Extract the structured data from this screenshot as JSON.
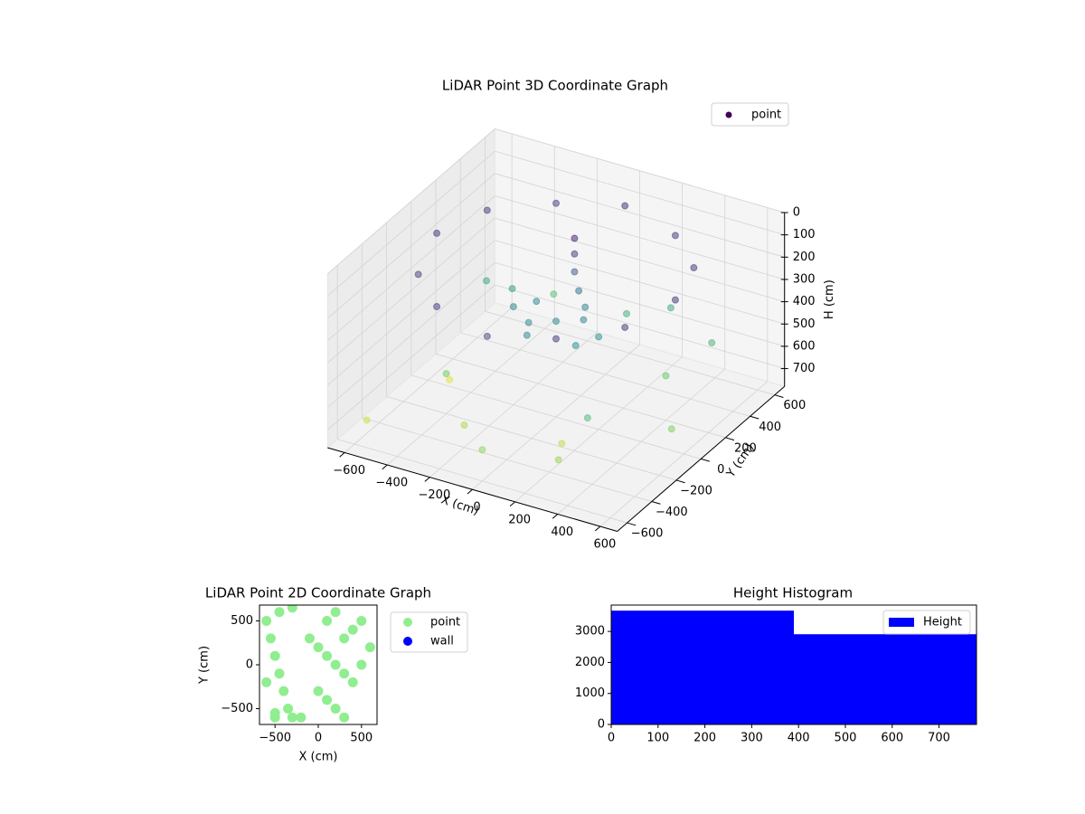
{
  "chart_data": [
    {
      "type": "scatter3d",
      "title": "LiDAR Point 3D Coordinate Graph",
      "xlabel": "X (cm)",
      "ylabel": "Y (cm)",
      "zlabel": "H (cm)",
      "xlim": [
        -680,
        680
      ],
      "ylim": [
        -680,
        680
      ],
      "zlim": [
        0,
        780
      ],
      "z_inverted": true,
      "xticks": [
        {
          "value": -600,
          "label": "−600"
        },
        {
          "value": -400,
          "label": "−400"
        },
        {
          "value": -200,
          "label": "−200"
        },
        0,
        200,
        400,
        600
      ],
      "yticks": [
        {
          "value": -600,
          "label": "−600"
        },
        {
          "value": -400,
          "label": "−400"
        },
        {
          "value": -200,
          "label": "−200"
        },
        0,
        200,
        400,
        600
      ],
      "zticks": [
        0,
        100,
        200,
        300,
        400,
        500,
        600,
        700
      ],
      "grid": true,
      "colormap": "viridis",
      "alpha": 0.5,
      "legend": "upper right",
      "series": [
        {
          "name": "point",
          "x": [
            560,
            485,
            280,
            0,
            -280,
            -485,
            -560,
            -485,
            -280,
            0,
            280,
            485,
            0,
            100,
            -100,
            150,
            -150,
            50,
            -50,
            200,
            -200,
            0,
            0,
            0,
            20,
            -500,
            -400,
            300,
            500,
            -300,
            200,
            -600,
            600,
            100,
            -200,
            400,
            -500,
            0,
            350,
            -350,
            250
          ],
          "y": [
            0,
            280,
            485,
            560,
            485,
            280,
            0,
            -280,
            -485,
            -560,
            -485,
            -280,
            0,
            50,
            -50,
            -100,
            100,
            150,
            -150,
            0,
            0,
            150,
            150,
            150,
            150,
            300,
            -200,
            -500,
            400,
            500,
            -300,
            -500,
            -100,
            400,
            -400,
            200,
            0,
            -600,
            -350,
            250,
            500
          ],
          "z": [
            100,
            110,
            120,
            100,
            130,
            120,
            110,
            140,
            130,
            150,
            120,
            110,
            350,
            340,
            360,
            370,
            350,
            345,
            355,
            365,
            340,
            50,
            120,
            200,
            280,
            450,
            600,
            650,
            500,
            550,
            700,
            720,
            620,
            480,
            680,
            580,
            750,
            640,
            520,
            420,
            460
          ]
        }
      ]
    },
    {
      "type": "scatter",
      "title": "LiDAR Point 2D Coordinate Graph",
      "xlabel": "X (cm)",
      "ylabel": "Y (cm)",
      "xlim": [
        -680,
        680
      ],
      "ylim": [
        -680,
        680
      ],
      "xticks": [
        {
          "value": -500,
          "label": "−500"
        },
        0,
        500
      ],
      "yticks": [
        {
          "value": -500,
          "label": "−500"
        },
        0,
        500
      ],
      "legend": "outside right",
      "series": [
        {
          "name": "point",
          "color": "#90ee90",
          "x": [
            -600,
            -550,
            -500,
            -450,
            -400,
            -350,
            -300,
            -600,
            -500,
            -450,
            -100,
            0,
            100,
            200,
            300,
            400,
            500,
            600,
            0,
            100,
            200,
            300,
            400,
            500,
            100,
            200,
            300,
            -200,
            -300,
            -500
          ],
          "y": [
            500,
            300,
            100,
            -100,
            -300,
            -500,
            -600,
            -200,
            -600,
            600,
            300,
            200,
            100,
            0,
            -100,
            -200,
            0,
            200,
            -300,
            -400,
            -500,
            -600,
            400,
            500,
            500,
            600,
            300,
            -600,
            650,
            -550
          ]
        },
        {
          "name": "wall",
          "color": "#0000ff",
          "x": [],
          "y": []
        }
      ]
    },
    {
      "type": "histogram",
      "title": "Height Histogram",
      "xlim": [
        0,
        780
      ],
      "ylim": [
        0,
        3850
      ],
      "xticks": [
        0,
        100,
        200,
        300,
        400,
        500,
        600,
        700
      ],
      "yticks": [
        0,
        1000,
        2000,
        3000
      ],
      "bins": [
        0,
        390,
        780
      ],
      "legend": "upper right",
      "series": [
        {
          "name": "Height",
          "color": "#0000ff",
          "values": [
            3670,
            2910
          ]
        }
      ]
    }
  ]
}
